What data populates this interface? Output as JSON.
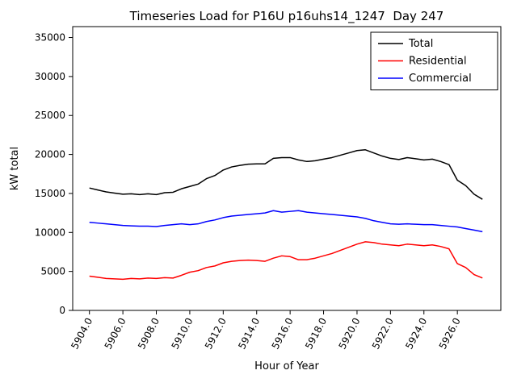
{
  "chart_data": {
    "type": "line",
    "title": "Timeseries Load for P16U p16uhs14_1247  Day 247",
    "xlabel": "Hour of Year",
    "ylabel": "kW total",
    "xlim": [
      5903.0,
      5928.6
    ],
    "ylim": [
      0,
      36400
    ],
    "grid": false,
    "legend_position": "upper right",
    "x_ticks": [
      5904,
      5906,
      5908,
      5910,
      5912,
      5914,
      5916,
      5918,
      5920,
      5922,
      5924,
      5926
    ],
    "x_tick_labels": [
      "5904.0",
      "5906.0",
      "5908.0",
      "5910.0",
      "5912.0",
      "5914.0",
      "5916.0",
      "5918.0",
      "5920.0",
      "5922.0",
      "5924.0",
      "5926.0"
    ],
    "y_ticks": [
      0,
      5000,
      10000,
      15000,
      20000,
      25000,
      30000,
      35000
    ],
    "y_tick_labels": [
      "0",
      "5000",
      "10000",
      "15000",
      "20000",
      "25000",
      "30000",
      "35000"
    ],
    "x": [
      5904.0,
      5904.5,
      5905.0,
      5905.5,
      5906.0,
      5906.5,
      5907.0,
      5907.5,
      5908.0,
      5908.5,
      5909.0,
      5909.5,
      5910.0,
      5910.5,
      5911.0,
      5911.5,
      5912.0,
      5912.5,
      5913.0,
      5913.5,
      5914.0,
      5914.5,
      5915.0,
      5915.5,
      5916.0,
      5916.5,
      5917.0,
      5917.5,
      5918.0,
      5918.5,
      5919.0,
      5919.5,
      5920.0,
      5920.5,
      5921.0,
      5921.5,
      5922.0,
      5922.5,
      5923.0,
      5923.5,
      5924.0,
      5924.5,
      5925.0,
      5925.5,
      5926.0,
      5926.5,
      5927.0,
      5927.5
    ],
    "series": [
      {
        "name": "Total",
        "color": "#000000",
        "values": [
          15700,
          15450,
          15200,
          15050,
          14900,
          14950,
          14850,
          14950,
          14850,
          15100,
          15150,
          15600,
          15900,
          16200,
          16900,
          17300,
          18000,
          18400,
          18600,
          18750,
          18800,
          18800,
          19500,
          19600,
          19600,
          19300,
          19100,
          19200,
          19400,
          19600,
          19900,
          20200,
          20500,
          20600,
          20200,
          19800,
          19500,
          19350,
          19600,
          19450,
          19300,
          19400,
          19100,
          18700,
          16700,
          16000,
          14900,
          14250
        ]
      },
      {
        "name": "Residential",
        "color": "#ff0000",
        "values": [
          4400,
          4250,
          4100,
          4050,
          4000,
          4100,
          4050,
          4150,
          4100,
          4200,
          4150,
          4500,
          4900,
          5100,
          5500,
          5700,
          6100,
          6300,
          6400,
          6450,
          6400,
          6300,
          6700,
          7000,
          6900,
          6500,
          6500,
          6700,
          7000,
          7300,
          7700,
          8100,
          8500,
          8800,
          8700,
          8500,
          8400,
          8300,
          8500,
          8400,
          8300,
          8400,
          8200,
          7900,
          6000,
          5500,
          4600,
          4150
        ]
      },
      {
        "name": "Commercial",
        "color": "#0000ff",
        "values": [
          11300,
          11200,
          11100,
          11000,
          10900,
          10850,
          10800,
          10800,
          10750,
          10900,
          11000,
          11100,
          11000,
          11100,
          11400,
          11600,
          11900,
          12100,
          12200,
          12300,
          12400,
          12500,
          12800,
          12600,
          12700,
          12800,
          12600,
          12500,
          12400,
          12300,
          12200,
          12100,
          12000,
          11800,
          11500,
          11300,
          11100,
          11050,
          11100,
          11050,
          11000,
          11000,
          10900,
          10800,
          10700,
          10500,
          10300,
          10100
        ]
      }
    ]
  }
}
